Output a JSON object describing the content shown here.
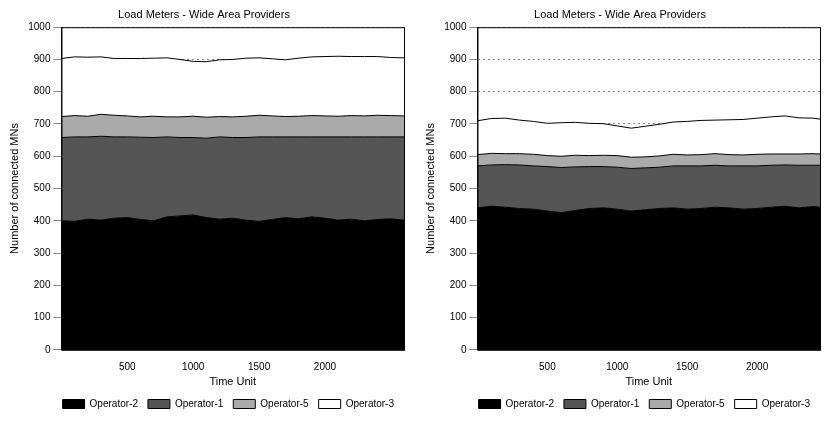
{
  "chart_data": [
    {
      "type": "area",
      "title": "Load Meters - Wide Area Providers",
      "x_label": "Time Unit",
      "y_label": "Number of connected MNs",
      "x": [
        0,
        100,
        200,
        300,
        400,
        500,
        600,
        700,
        800,
        900,
        1000,
        1100,
        1200,
        1300,
        1400,
        1500,
        1600,
        1700,
        1800,
        1900,
        2000,
        2100,
        2200,
        2300,
        2400,
        2500,
        2600
      ],
      "series": [
        {
          "name": "Operator-2",
          "color": "#000000",
          "values": [
            400,
            398,
            405,
            402,
            408,
            410,
            404,
            400,
            412,
            415,
            418,
            410,
            405,
            408,
            402,
            398,
            404,
            410,
            406,
            412,
            408,
            402,
            405,
            400,
            404,
            406,
            402
          ]
        },
        {
          "name": "Operator-1",
          "color": "#555555",
          "values": [
            258,
            262,
            255,
            260,
            252,
            250,
            255,
            258,
            248,
            243,
            240,
            246,
            255,
            250,
            256,
            262,
            256,
            250,
            254,
            248,
            252,
            258,
            255,
            260,
            256,
            254,
            258
          ]
        },
        {
          "name": "Operator-5",
          "color": "#aaaaaa",
          "values": [
            65,
            66,
            64,
            68,
            67,
            65,
            63,
            66,
            62,
            64,
            66,
            65,
            63,
            64,
            66,
            67,
            65,
            63,
            64,
            66,
            65,
            64,
            66,
            65,
            67,
            66,
            65
          ]
        },
        {
          "name": "Operator-3",
          "color": "#ffffff",
          "values": [
            180,
            182,
            183,
            178,
            176,
            178,
            181,
            180,
            183,
            178,
            170,
            172,
            176,
            178,
            180,
            178,
            177,
            176,
            180,
            182,
            184,
            186,
            183,
            184,
            182,
            180,
            180
          ]
        }
      ],
      "xlim": [
        0,
        2600
      ],
      "xticks": [
        500,
        1000,
        1500,
        2000
      ],
      "ylim": [
        0,
        1000
      ],
      "yticks": [
        0,
        100,
        200,
        300,
        400,
        500,
        600,
        700,
        800,
        900,
        1000
      ],
      "stacked": true,
      "grid": true,
      "legend": "lower right"
    },
    {
      "type": "area",
      "title": "Load Meters - Wide Area Providers",
      "x_label": "Time Unit",
      "y_label": "Number of connected MNs",
      "x": [
        0,
        100,
        200,
        300,
        400,
        500,
        600,
        700,
        800,
        900,
        1000,
        1100,
        1200,
        1300,
        1400,
        1500,
        1600,
        1700,
        1800,
        1900,
        2000,
        2100,
        2200,
        2300,
        2400,
        2450
      ],
      "series": [
        {
          "name": "Operator-2",
          "color": "#000000",
          "values": [
            440,
            445,
            442,
            438,
            436,
            430,
            425,
            432,
            438,
            440,
            436,
            430,
            434,
            438,
            440,
            436,
            438,
            442,
            440,
            436,
            438,
            442,
            445,
            440,
            444,
            442
          ]
        },
        {
          "name": "Operator-1",
          "color": "#555555",
          "values": [
            130,
            128,
            132,
            135,
            134,
            138,
            140,
            135,
            130,
            128,
            130,
            132,
            130,
            128,
            130,
            134,
            132,
            130,
            130,
            134,
            132,
            130,
            128,
            132,
            128,
            130
          ]
        },
        {
          "name": "Operator-5",
          "color": "#aaaaaa",
          "values": [
            35,
            36,
            34,
            35,
            36,
            34,
            35,
            36,
            34,
            35,
            36,
            35,
            34,
            35,
            36,
            34,
            35,
            36,
            35,
            34,
            36,
            35,
            34,
            35,
            36,
            35
          ]
        },
        {
          "name": "Operator-3",
          "color": "#ffffff",
          "values": [
            105,
            108,
            110,
            104,
            102,
            100,
            104,
            102,
            100,
            98,
            92,
            90,
            95,
            98,
            100,
            104,
            106,
            104,
            108,
            110,
            112,
            115,
            118,
            112,
            110,
            108
          ]
        }
      ],
      "xlim": [
        0,
        2450
      ],
      "xticks": [
        500,
        1000,
        1500,
        2000
      ],
      "ylim": [
        0,
        1000
      ],
      "yticks": [
        0,
        100,
        200,
        300,
        400,
        500,
        600,
        700,
        800,
        900,
        1000
      ],
      "stacked": true,
      "grid": true,
      "legend": "lower right"
    }
  ]
}
